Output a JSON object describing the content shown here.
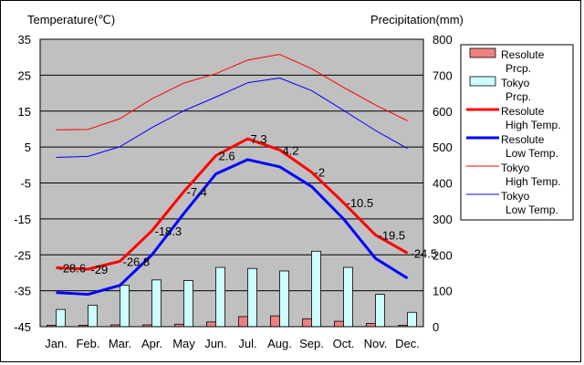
{
  "chart_data": {
    "type": "line",
    "y_left_label": "Temperature(℃)",
    "y_right_label": "Precipitation(mm)",
    "categories": [
      "Jan.",
      "Feb.",
      "Mar.",
      "Apr.",
      "May",
      "Jun.",
      "Jul.",
      "Aug.",
      "Sep.",
      "Oct.",
      "Nov.",
      "Dec."
    ],
    "y_left_ticks": [
      35,
      25,
      15,
      5,
      -5,
      -15,
      -25,
      -35,
      -45
    ],
    "y_right_ticks": [
      800,
      700,
      600,
      500,
      400,
      300,
      200,
      100,
      0
    ],
    "ylim_left": [
      -45,
      35
    ],
    "ylim_right": [
      0,
      800
    ],
    "plot_background": "#c0c0c0",
    "grid": true,
    "legend_position": "right",
    "bars": [
      {
        "name": "Resolute Prcp.",
        "color": "#f08080",
        "values": [
          4,
          4,
          5,
          5,
          7,
          13,
          28,
          30,
          22,
          15,
          9,
          4
        ]
      },
      {
        "name": "Tokyo Prcp.",
        "color": "#ccffff",
        "values": [
          48,
          60,
          115,
          130,
          128,
          165,
          162,
          155,
          210,
          165,
          90,
          40
        ]
      }
    ],
    "lines": [
      {
        "name": "Resolute High Temp.",
        "color": "#ff0000",
        "width": 3,
        "values": [
          -28.6,
          -29,
          -26.8,
          -18.3,
          -7.4,
          2.6,
          7.3,
          4.2,
          -2,
          -10.5,
          -19.5,
          -24.5
        ]
      },
      {
        "name": "Resolute Low Temp.",
        "color": "#0000ff",
        "width": 3,
        "values": [
          -35.5,
          -36,
          -33.5,
          -25,
          -13.5,
          -2.5,
          1.5,
          -0.5,
          -6,
          -15,
          -26,
          -31.5
        ]
      },
      {
        "name": "Tokyo High Temp.",
        "color": "#ff0000",
        "width": 1,
        "values": [
          9.8,
          9.9,
          12.9,
          18.4,
          22.8,
          25.4,
          29.2,
          30.8,
          26.8,
          21.6,
          16.7,
          12.3
        ]
      },
      {
        "name": "Tokyo Low Temp.",
        "color": "#0000ff",
        "width": 1,
        "values": [
          2.1,
          2.4,
          5.1,
          10.4,
          15.1,
          18.9,
          22.9,
          24.2,
          20.7,
          15.2,
          9.6,
          4.6
        ]
      }
    ],
    "data_labels": {
      "series": "Resolute High Temp.",
      "values": [
        "-28.6",
        "-29",
        "-26.8",
        "-18.3",
        "-7.4",
        "2.6",
        "7.3",
        "4.2",
        "-2",
        "-10.5",
        "-19.5",
        "-24.5"
      ]
    },
    "legend": [
      {
        "kind": "bar",
        "color": "#f08080",
        "line1": "Resolute",
        "line2": "Prcp."
      },
      {
        "kind": "bar",
        "color": "#ccffff",
        "line1": "Tokyo",
        "line2": "Prcp."
      },
      {
        "kind": "line",
        "color": "#ff0000",
        "width": 3,
        "line1": "Resolute",
        "line2": "High Temp."
      },
      {
        "kind": "line",
        "color": "#0000ff",
        "width": 3,
        "line1": "Resolute",
        "line2": "Low Temp."
      },
      {
        "kind": "line",
        "color": "#ff0000",
        "width": 1,
        "line1": "Tokyo",
        "line2": "High Temp."
      },
      {
        "kind": "line",
        "color": "#0000ff",
        "width": 1,
        "line1": "Tokyo",
        "line2": "Low Temp."
      }
    ]
  }
}
